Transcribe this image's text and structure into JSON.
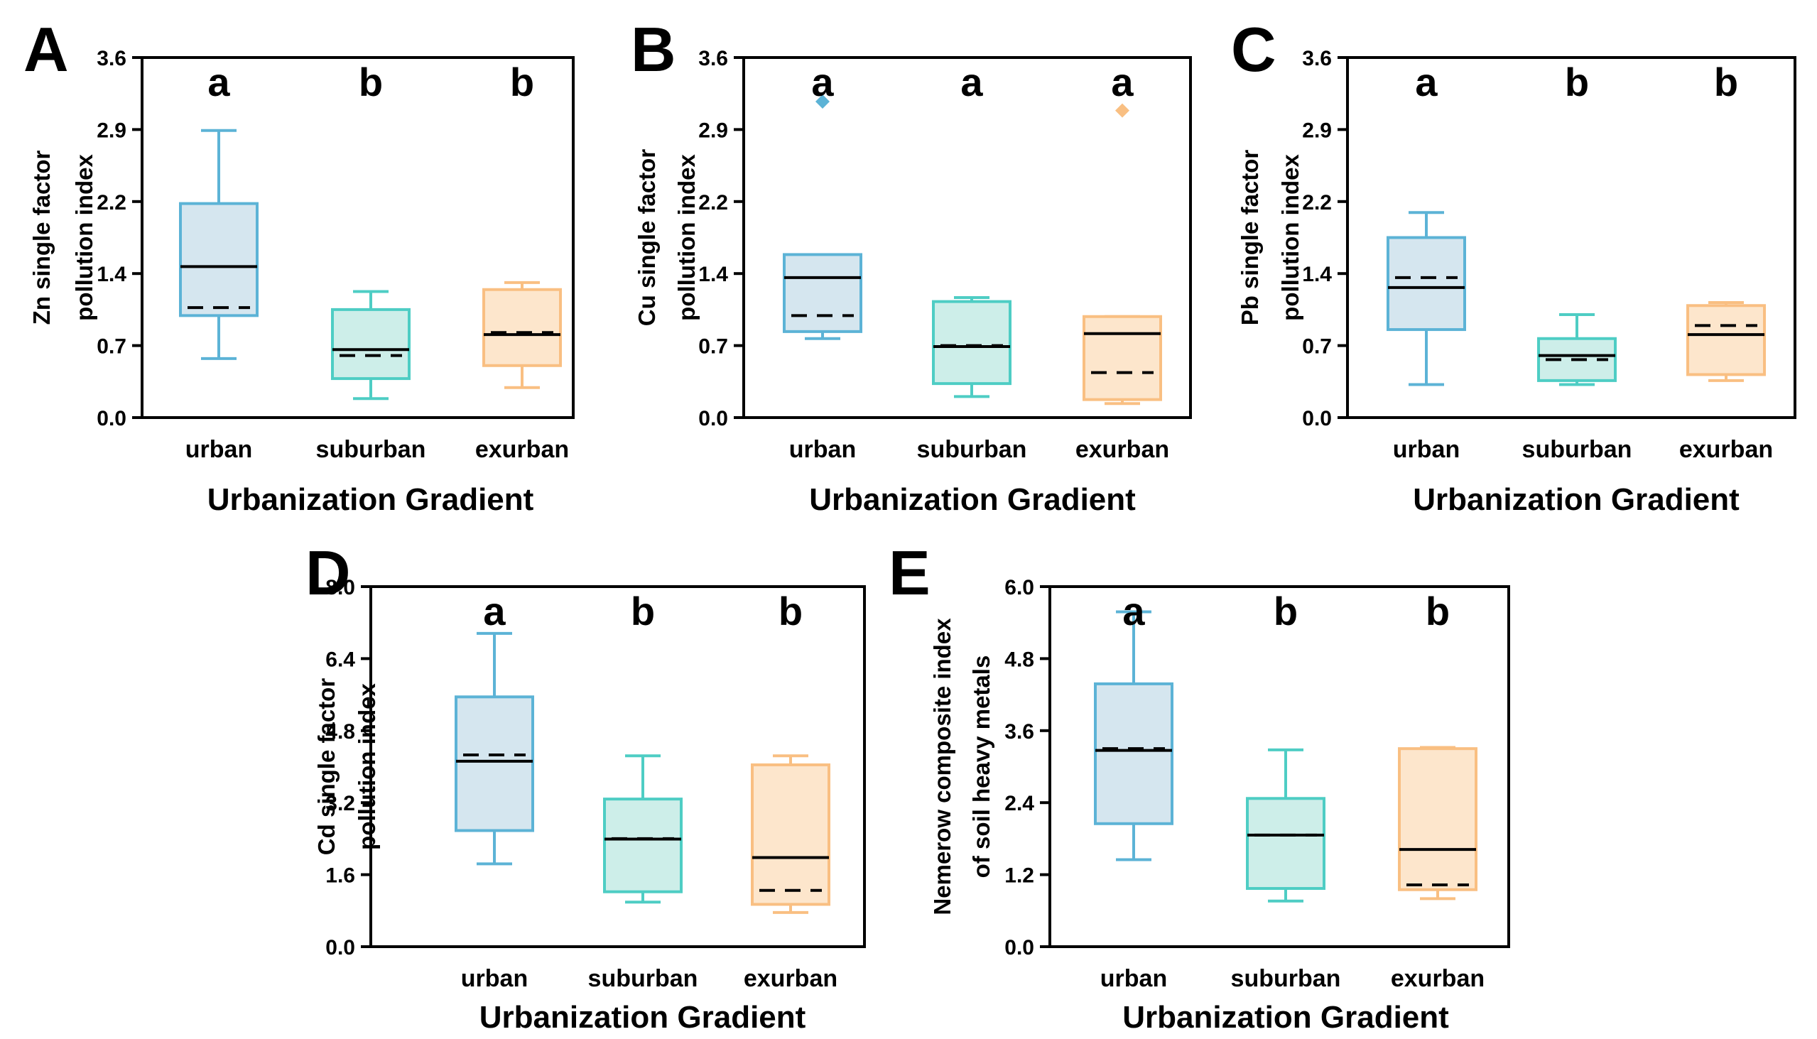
{
  "chart_data": [
    {
      "panel": "A",
      "type": "box",
      "ylabel": [
        "Zn single factor",
        "pollution index"
      ],
      "xlabel": "Urbanization Gradient",
      "ylim": [
        0,
        3.6
      ],
      "yticks": [
        "0.0",
        "0.7",
        "1.4",
        "2.2",
        "2.9",
        "3.6"
      ],
      "categories": [
        "urban",
        "suburban",
        "exurban"
      ],
      "boxes": [
        {
          "min": 0.59,
          "q1": 1.02,
          "median": 1.51,
          "mean": 1.1,
          "q3": 2.14,
          "max": 2.87,
          "outliers": [],
          "sig": "a"
        },
        {
          "min": 0.19,
          "q1": 0.39,
          "median": 0.68,
          "mean": 0.62,
          "q3": 1.08,
          "max": 1.26,
          "outliers": [],
          "sig": "b"
        },
        {
          "min": 0.3,
          "q1": 0.52,
          "median": 0.83,
          "mean": 0.85,
          "q3": 1.28,
          "max": 1.35,
          "outliers": [],
          "sig": "b"
        }
      ]
    },
    {
      "panel": "B",
      "type": "box",
      "ylabel": [
        "Cu single factor",
        "pollution index"
      ],
      "xlabel": "Urbanization Gradient",
      "ylim": [
        0,
        3.6
      ],
      "yticks": [
        "0.0",
        "0.7",
        "1.4",
        "2.2",
        "2.9",
        "3.6"
      ],
      "categories": [
        "urban",
        "suburban",
        "exurban"
      ],
      "boxes": [
        {
          "min": 0.79,
          "q1": 0.86,
          "median": 1.4,
          "mean": 1.02,
          "q3": 1.63,
          "max": 1.63,
          "outliers": [
            3.16
          ],
          "sig": "a"
        },
        {
          "min": 0.21,
          "q1": 0.34,
          "median": 0.71,
          "mean": 0.72,
          "q3": 1.16,
          "max": 1.2,
          "outliers": [],
          "sig": "a"
        },
        {
          "min": 0.14,
          "q1": 0.18,
          "median": 0.84,
          "mean": 0.45,
          "q3": 1.01,
          "max": 1.01,
          "outliers": [
            3.07
          ],
          "sig": "a"
        }
      ]
    },
    {
      "panel": "C",
      "type": "box",
      "ylabel": [
        "Pb single factor",
        "pollution index"
      ],
      "xlabel": "Urbanization Gradient",
      "ylim": [
        0,
        3.6
      ],
      "yticks": [
        "0.0",
        "0.7",
        "1.4",
        "2.2",
        "2.9",
        "3.6"
      ],
      "categories": [
        "urban",
        "suburban",
        "exurban"
      ],
      "boxes": [
        {
          "min": 0.33,
          "q1": 0.88,
          "median": 1.3,
          "mean": 1.4,
          "q3": 1.8,
          "max": 2.05,
          "outliers": [],
          "sig": "a"
        },
        {
          "min": 0.33,
          "q1": 0.37,
          "median": 0.62,
          "mean": 0.58,
          "q3": 0.79,
          "max": 1.03,
          "outliers": [],
          "sig": "b"
        },
        {
          "min": 0.37,
          "q1": 0.43,
          "median": 0.83,
          "mean": 0.92,
          "q3": 1.12,
          "max": 1.15,
          "outliers": [],
          "sig": "b"
        }
      ]
    },
    {
      "panel": "D",
      "type": "box",
      "ylabel": [
        "Cd single factor",
        "pollution index"
      ],
      "xlabel": "Urbanization Gradient",
      "ylim": [
        0,
        8.0
      ],
      "yticks": [
        "0.0",
        "1.6",
        "3.2",
        "4.8",
        "6.4",
        "8.0"
      ],
      "categories": [
        "urban",
        "suburban",
        "exurban"
      ],
      "boxes": [
        {
          "min": 1.84,
          "q1": 2.58,
          "median": 4.12,
          "mean": 4.26,
          "q3": 5.55,
          "max": 6.96,
          "outliers": [],
          "sig": "a"
        },
        {
          "min": 0.99,
          "q1": 1.22,
          "median": 2.39,
          "mean": 2.4,
          "q3": 3.28,
          "max": 4.24,
          "outliers": [],
          "sig": "b"
        },
        {
          "min": 0.76,
          "q1": 0.94,
          "median": 1.98,
          "mean": 1.25,
          "q3": 4.04,
          "max": 4.24,
          "outliers": [],
          "sig": "b"
        }
      ]
    },
    {
      "panel": "E",
      "type": "box",
      "ylabel": [
        "Nemerow composite index",
        "of soil heavy metals"
      ],
      "xlabel": "Urbanization Gradient",
      "ylim": [
        0,
        6.0
      ],
      "yticks": [
        "0.0",
        "1.2",
        "2.4",
        "3.6",
        "4.8",
        "6.0"
      ],
      "categories": [
        "urban",
        "suburban",
        "exurban"
      ],
      "boxes": [
        {
          "min": 1.45,
          "q1": 2.05,
          "median": 3.27,
          "mean": 3.3,
          "q3": 4.38,
          "max": 5.58,
          "outliers": [],
          "sig": "a"
        },
        {
          "min": 0.76,
          "q1": 0.97,
          "median": 1.86,
          "mean": 1.86,
          "q3": 2.47,
          "max": 3.28,
          "outliers": [],
          "sig": "b"
        },
        {
          "min": 0.8,
          "q1": 0.95,
          "median": 1.62,
          "mean": 1.03,
          "q3": 3.3,
          "max": 3.32,
          "outliers": [],
          "sig": "b"
        }
      ]
    }
  ],
  "colors": {
    "urban": {
      "stroke": "#5cb3d6",
      "fill": "#d5e6ef"
    },
    "suburban": {
      "stroke": "#4ecdc4",
      "fill": "#cdeee9"
    },
    "exurban": {
      "stroke": "#f9bf82",
      "fill": "#fde6cc"
    }
  }
}
